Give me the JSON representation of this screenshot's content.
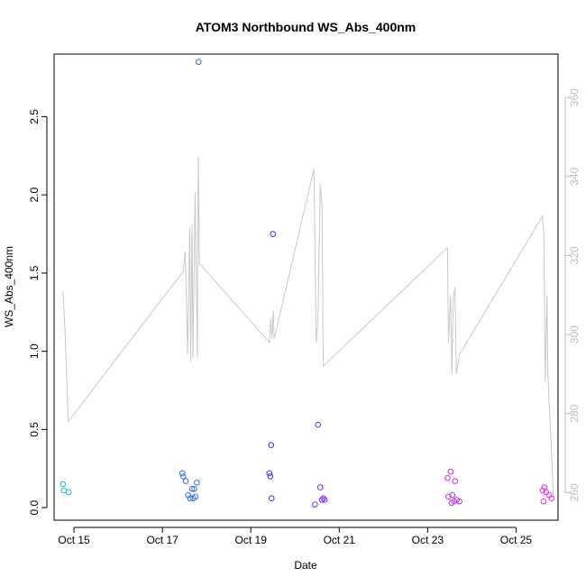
{
  "chart_data": {
    "type": "scatter",
    "title": "ATOM3 Northbound WS_Abs_400nm",
    "xlabel": "Date",
    "ylabel": "WS_Abs_400nm",
    "x_tick_labels": [
      "Oct 15",
      "Oct 17",
      "Oct 19",
      "Oct 21",
      "Oct 23",
      "Oct 25"
    ],
    "x_tick_values": [
      15,
      17,
      19,
      21,
      23,
      25
    ],
    "xlim": [
      14.55,
      25.95
    ],
    "ylim": [
      -0.08,
      2.9
    ],
    "y_ticks": [
      0.0,
      0.5,
      1.0,
      1.5,
      2.0,
      2.5
    ],
    "y_tick_labels": [
      "0.0",
      "0.5",
      "1.0",
      "1.5",
      "2.0",
      "2.5"
    ],
    "y2_ticks": [
      260,
      280,
      300,
      320,
      340,
      360
    ],
    "y2_tick_labels": [
      "260",
      "280",
      "300",
      "320",
      "340",
      "360"
    ],
    "y2lim": [
      253,
      371
    ],
    "grid": false,
    "series": [
      {
        "kind": "points",
        "points": [
          {
            "x": 14.75,
            "y": 0.15,
            "color": "#1fb7d6"
          },
          {
            "x": 14.77,
            "y": 0.11,
            "color": "#1fb7d6"
          },
          {
            "x": 14.88,
            "y": 0.1,
            "color": "#1fb7d6"
          },
          {
            "x": 17.45,
            "y": 0.22,
            "color": "#2f6ff0"
          },
          {
            "x": 17.47,
            "y": 0.2,
            "color": "#2f6ff0"
          },
          {
            "x": 17.53,
            "y": 0.17,
            "color": "#2f6ff0"
          },
          {
            "x": 17.58,
            "y": 0.08,
            "color": "#2f6ff0"
          },
          {
            "x": 17.63,
            "y": 0.06,
            "color": "#2f6ff0"
          },
          {
            "x": 17.67,
            "y": 0.12,
            "color": "#2f6ff0"
          },
          {
            "x": 17.7,
            "y": 0.06,
            "color": "#2f6ff0"
          },
          {
            "x": 17.72,
            "y": 0.12,
            "color": "#2f6ff0"
          },
          {
            "x": 17.75,
            "y": 0.07,
            "color": "#2f6ff0"
          },
          {
            "x": 17.78,
            "y": 0.16,
            "color": "#2f6ff0"
          },
          {
            "x": 17.82,
            "y": 2.85,
            "color": "#2f6ff0"
          },
          {
            "x": 19.42,
            "y": 0.22,
            "color": "#3a2ee0"
          },
          {
            "x": 19.44,
            "y": 0.2,
            "color": "#3a2ee0"
          },
          {
            "x": 19.46,
            "y": 0.4,
            "color": "#3a2ee0"
          },
          {
            "x": 19.47,
            "y": 0.06,
            "color": "#3a2ee0"
          },
          {
            "x": 19.5,
            "y": 1.75,
            "color": "#3a2ee0"
          },
          {
            "x": 20.45,
            "y": 0.02,
            "color": "#7a2ee6"
          },
          {
            "x": 20.52,
            "y": 0.53,
            "color": "#7a2ee6"
          },
          {
            "x": 20.57,
            "y": 0.13,
            "color": "#7a2ee6"
          },
          {
            "x": 20.61,
            "y": 0.05,
            "color": "#7a2ee6"
          },
          {
            "x": 20.64,
            "y": 0.06,
            "color": "#7a2ee6"
          },
          {
            "x": 20.67,
            "y": 0.05,
            "color": "#7a2ee6"
          },
          {
            "x": 23.45,
            "y": 0.19,
            "color": "#c12ee6"
          },
          {
            "x": 23.47,
            "y": 0.07,
            "color": "#c12ee6"
          },
          {
            "x": 23.52,
            "y": 0.23,
            "color": "#c12ee6"
          },
          {
            "x": 23.54,
            "y": 0.03,
            "color": "#c12ee6"
          },
          {
            "x": 23.56,
            "y": 0.08,
            "color": "#c12ee6"
          },
          {
            "x": 23.6,
            "y": 0.04,
            "color": "#c12ee6"
          },
          {
            "x": 23.62,
            "y": 0.17,
            "color": "#c12ee6"
          },
          {
            "x": 23.66,
            "y": 0.05,
            "color": "#c12ee6"
          },
          {
            "x": 23.72,
            "y": 0.04,
            "color": "#c12ee6"
          },
          {
            "x": 25.6,
            "y": 0.11,
            "color": "#ee2ee0"
          },
          {
            "x": 25.62,
            "y": 0.04,
            "color": "#ee2ee0"
          },
          {
            "x": 25.64,
            "y": 0.13,
            "color": "#ee2ee0"
          },
          {
            "x": 25.68,
            "y": 0.1,
            "color": "#ee2ee0"
          },
          {
            "x": 25.75,
            "y": 0.08,
            "color": "#ee2ee0"
          },
          {
            "x": 25.8,
            "y": 0.06,
            "color": "#ee2ee0"
          }
        ]
      },
      {
        "kind": "line",
        "axis": "right",
        "color": "#c8c8c8",
        "points": [
          [
            14.75,
            311
          ],
          [
            14.8,
            300
          ],
          [
            14.87,
            278
          ],
          [
            17.47,
            316
          ],
          [
            17.52,
            321
          ],
          [
            17.57,
            295
          ],
          [
            17.62,
            327
          ],
          [
            17.64,
            293
          ],
          [
            17.67,
            328
          ],
          [
            17.69,
            294
          ],
          [
            17.74,
            336
          ],
          [
            17.79,
            294
          ],
          [
            17.81,
            345
          ],
          [
            17.84,
            318
          ],
          [
            19.42,
            298
          ],
          [
            19.45,
            304
          ],
          [
            19.48,
            299
          ],
          [
            19.51,
            306
          ],
          [
            19.53,
            299
          ],
          [
            20.43,
            342
          ],
          [
            20.48,
            298
          ],
          [
            20.52,
            303
          ],
          [
            20.57,
            338
          ],
          [
            20.61,
            332
          ],
          [
            20.64,
            292
          ],
          [
            23.45,
            322
          ],
          [
            23.47,
            298
          ],
          [
            23.52,
            310
          ],
          [
            23.55,
            290
          ],
          [
            23.58,
            309
          ],
          [
            23.62,
            312
          ],
          [
            23.65,
            290
          ],
          [
            23.72,
            295
          ],
          [
            25.6,
            330
          ],
          [
            25.63,
            325
          ],
          [
            25.66,
            288
          ],
          [
            25.7,
            310
          ],
          [
            25.72,
            290
          ],
          [
            25.85,
            258
          ]
        ]
      }
    ]
  }
}
